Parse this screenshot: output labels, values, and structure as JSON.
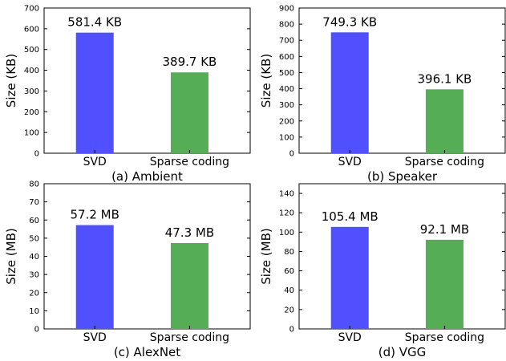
{
  "colors": {
    "svd": "#5050ff",
    "sparse": "#55ae55"
  },
  "chart_data": [
    {
      "type": "bar",
      "caption": "(a) Ambient",
      "ylabel": "Size (KB)",
      "ylim": [
        0,
        700
      ],
      "yticks": [
        "0",
        "100",
        "200",
        "300",
        "400",
        "500",
        "600",
        "700"
      ],
      "categories": [
        "SVD",
        "Sparse coding"
      ],
      "values": [
        581.4,
        389.7
      ],
      "value_labels": [
        "581.4 KB",
        "389.7 KB"
      ]
    },
    {
      "type": "bar",
      "caption": "(b) Speaker",
      "ylabel": "Size (KB)",
      "ylim": [
        0,
        900
      ],
      "yticks": [
        "0",
        "100",
        "200",
        "300",
        "400",
        "500",
        "600",
        "700",
        "800",
        "900"
      ],
      "categories": [
        "SVD",
        "Sparse coding"
      ],
      "values": [
        749.3,
        396.1
      ],
      "value_labels": [
        "749.3 KB",
        "396.1 KB"
      ]
    },
    {
      "type": "bar",
      "caption": "(c) AlexNet",
      "ylabel": "Size (MB)",
      "ylim": [
        0,
        80
      ],
      "yticks": [
        "0",
        "10",
        "20",
        "30",
        "40",
        "50",
        "60",
        "70",
        "80"
      ],
      "categories": [
        "SVD",
        "Sparse coding"
      ],
      "values": [
        57.2,
        47.3
      ],
      "value_labels": [
        "57.2 MB",
        "47.3 MB"
      ]
    },
    {
      "type": "bar",
      "caption": "(d) VGG",
      "ylabel": "Size (MB)",
      "ylim": [
        0,
        150
      ],
      "yticks": [
        "0",
        "20",
        "40",
        "60",
        "80",
        "100",
        "120",
        "140"
      ],
      "categories": [
        "SVD",
        "Sparse coding"
      ],
      "values": [
        105.4,
        92.1
      ],
      "value_labels": [
        "105.4 MB",
        "92.1 MB"
      ]
    }
  ]
}
